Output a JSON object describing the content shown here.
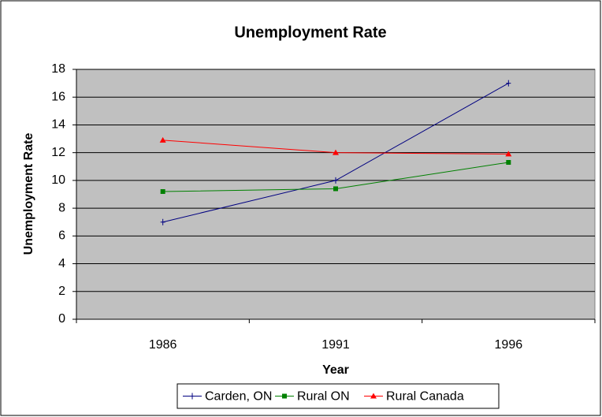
{
  "chart_data": {
    "type": "line",
    "title": "Unemployment Rate",
    "x_label": "Year",
    "y_label": "Unemployment Rate",
    "categories": [
      "1986",
      "1991",
      "1996"
    ],
    "series": [
      {
        "name": "Carden, ON",
        "color": "#000080",
        "marker": "plus",
        "values": [
          7,
          10,
          17
        ]
      },
      {
        "name": "Rural ON",
        "color": "#008000",
        "marker": "square",
        "values": [
          9.2,
          9.4,
          11.3
        ]
      },
      {
        "name": "Rural Canada",
        "color": "#ff0000",
        "marker": "triangle",
        "values": [
          12.9,
          12.0,
          11.9
        ]
      }
    ],
    "ylim": [
      0,
      18
    ],
    "yticks": [
      0,
      2,
      4,
      6,
      8,
      10,
      12,
      14,
      16,
      18
    ],
    "grid": true,
    "legend": "bottom",
    "plot_background": "#c0c0c0"
  }
}
